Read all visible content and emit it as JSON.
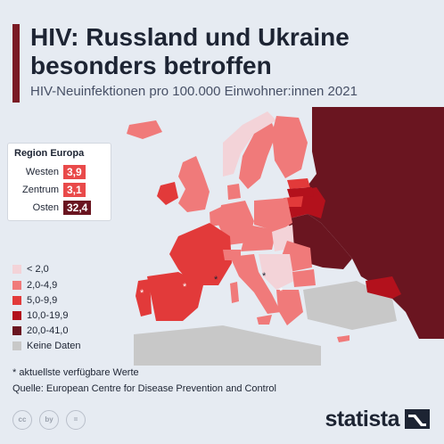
{
  "title": "HIV: Russland und Ukraine besonders betroffen",
  "subtitle": "HIV-Neuinfektionen pro 100.000 Einwohner:innen 2021",
  "region_box": {
    "title": "Region Europa",
    "rows": [
      {
        "label": "Westen",
        "value": "3,9",
        "color": "#e94a4a"
      },
      {
        "label": "Zentrum",
        "value": "3,1",
        "color": "#e94a4a"
      },
      {
        "label": "Osten",
        "value": "32,4",
        "color": "#6a1520"
      }
    ]
  },
  "legend": [
    {
      "label": "< 2,0",
      "color": "#f3d3d8"
    },
    {
      "label": "2,0-4,9",
      "color": "#f07a7a"
    },
    {
      "label": "5,0-9,9",
      "color": "#e23a3a"
    },
    {
      "label": "10,0-19,9",
      "color": "#b3111c"
    },
    {
      "label": "20,0-41,0",
      "color": "#6a1520"
    },
    {
      "label": "Keine Daten",
      "color": "#c8c8c8"
    }
  ],
  "map_markers": [
    "*",
    "*",
    "*",
    "*",
    "*"
  ],
  "footnote": "* aktuellste verfügbare Werte",
  "source": "Quelle: European Centre for Disease Prevention and Control",
  "cc_icons": [
    "cc",
    "by",
    "="
  ],
  "brand": "statista",
  "colors": {
    "sea": "#e6ebf2",
    "no_data": "#c8c8c8",
    "lt2": "#f3d3d8",
    "c2_5": "#f07a7a",
    "c5_10": "#e23a3a",
    "c10_20": "#b3111c",
    "c20_41": "#6a1520",
    "title_bar": "#7a1a24"
  }
}
